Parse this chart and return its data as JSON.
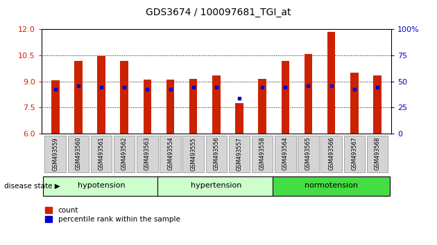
{
  "title": "GDS3674 / 100097681_TGI_at",
  "samples": [
    "GSM493559",
    "GSM493560",
    "GSM493561",
    "GSM493562",
    "GSM493563",
    "GSM493554",
    "GSM493555",
    "GSM493556",
    "GSM493557",
    "GSM493558",
    "GSM493564",
    "GSM493565",
    "GSM493566",
    "GSM493567",
    "GSM493568"
  ],
  "bar_heights": [
    9.05,
    10.2,
    10.47,
    10.2,
    9.1,
    9.1,
    9.15,
    9.35,
    7.75,
    9.15,
    10.2,
    10.6,
    11.85,
    9.5,
    9.35
  ],
  "blue_marker_y": [
    8.55,
    8.75,
    8.65,
    8.65,
    8.55,
    8.55,
    8.65,
    8.65,
    8.05,
    8.65,
    8.65,
    8.75,
    8.75,
    8.55,
    8.65
  ],
  "ylim": [
    6,
    12
  ],
  "yticks": [
    6,
    7.5,
    9,
    10.5,
    12
  ],
  "right_yticks": [
    0,
    25,
    50,
    75,
    100
  ],
  "bar_color": "#cc2200",
  "blue_color": "#0000cc",
  "base": 6,
  "bar_width": 0.35,
  "left_tick_color": "#cc2200",
  "right_tick_color": "#0000cc",
  "group_defs": [
    {
      "label": "hypotension",
      "start": 0,
      "end": 4,
      "color": "#ccffcc"
    },
    {
      "label": "hypertension",
      "start": 5,
      "end": 9,
      "color": "#ccffcc"
    },
    {
      "label": "normotension",
      "start": 10,
      "end": 14,
      "color": "#44dd44"
    }
  ]
}
